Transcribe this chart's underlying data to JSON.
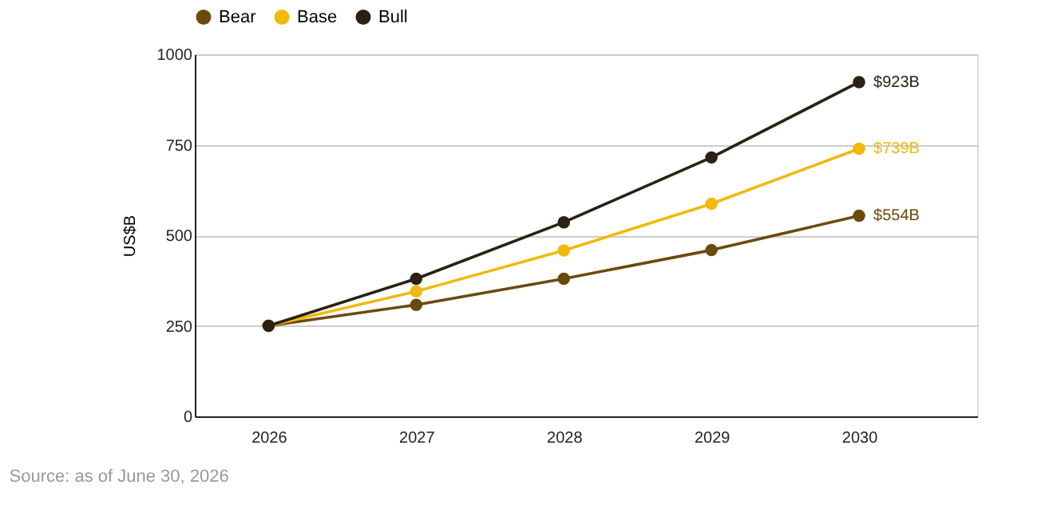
{
  "chart_data": {
    "type": "line",
    "ylabel": "US$B",
    "categories": [
      "2026",
      "2027",
      "2028",
      "2029",
      "2030"
    ],
    "series": [
      {
        "name": "Bear",
        "color": "#6b4a10",
        "values": [
          250,
          308,
          380,
          459,
          554
        ],
        "value_labels": [
          null,
          null,
          null,
          null,
          "$554B"
        ]
      },
      {
        "name": "Base",
        "color": "#f0b90b",
        "values": [
          250,
          345,
          458,
          587,
          739
        ],
        "value_labels": [
          null,
          null,
          null,
          null,
          "$739B"
        ]
      },
      {
        "name": "Bull",
        "color": "#2b2112",
        "values": [
          250,
          380,
          536,
          715,
          923
        ],
        "value_labels": [
          null,
          null,
          null,
          null,
          "$923B"
        ]
      }
    ],
    "ylim": [
      0,
      1000
    ],
    "yticks": [
      0,
      250,
      500,
      750,
      1000
    ],
    "grid": "y",
    "legend": "top",
    "marker": "circle",
    "line_style": "solid",
    "annotations": [
      "Source: as of June 30, 2026"
    ]
  }
}
